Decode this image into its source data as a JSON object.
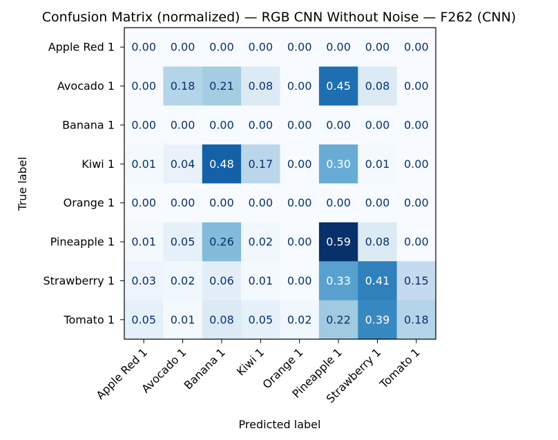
{
  "chart_data": {
    "type": "heatmap",
    "title": "Confusion Matrix (normalized) — RGB CNN Without Noise — F262 (CNN)",
    "xlabel": "Predicted label",
    "ylabel": "True label",
    "x_categories": [
      "Apple Red 1",
      "Avocado 1",
      "Banana 1",
      "Kiwi 1",
      "Orange 1",
      "Pineapple 1",
      "Strawberry 1",
      "Tomato 1"
    ],
    "y_categories": [
      "Apple Red 1",
      "Avocado 1",
      "Banana 1",
      "Kiwi 1",
      "Orange 1",
      "Pineapple 1",
      "Strawberry 1",
      "Tomato 1"
    ],
    "values": [
      [
        0.0,
        0.0,
        0.0,
        0.0,
        0.0,
        0.0,
        0.0,
        0.0
      ],
      [
        0.0,
        0.18,
        0.21,
        0.08,
        0.0,
        0.45,
        0.08,
        0.0
      ],
      [
        0.0,
        0.0,
        0.0,
        0.0,
        0.0,
        0.0,
        0.0,
        0.0
      ],
      [
        0.01,
        0.04,
        0.48,
        0.17,
        0.0,
        0.3,
        0.01,
        0.0
      ],
      [
        0.0,
        0.0,
        0.0,
        0.0,
        0.0,
        0.0,
        0.0,
        0.0
      ],
      [
        0.01,
        0.05,
        0.26,
        0.02,
        0.0,
        0.59,
        0.08,
        0.0
      ],
      [
        0.03,
        0.02,
        0.06,
        0.01,
        0.0,
        0.33,
        0.41,
        0.15
      ],
      [
        0.05,
        0.01,
        0.08,
        0.05,
        0.02,
        0.22,
        0.39,
        0.18
      ]
    ],
    "value_format": "2 decimals",
    "colormap": "Blues",
    "color_range": [
      0.0,
      0.59
    ],
    "colorbar": false,
    "grid": false
  }
}
